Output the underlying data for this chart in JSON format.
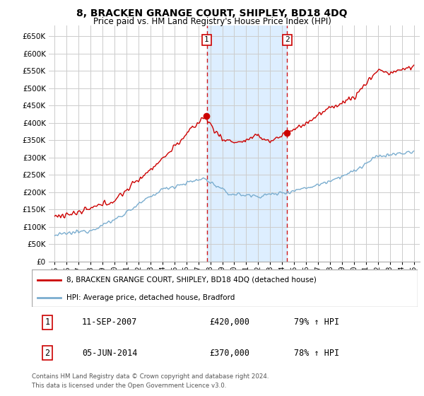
{
  "title": "8, BRACKEN GRANGE COURT, SHIPLEY, BD18 4DQ",
  "subtitle": "Price paid vs. HM Land Registry's House Price Index (HPI)",
  "ylim": [
    0,
    680000
  ],
  "yticks": [
    0,
    50000,
    100000,
    150000,
    200000,
    250000,
    300000,
    350000,
    400000,
    450000,
    500000,
    550000,
    600000,
    650000
  ],
  "sale1_date": 2007.7,
  "sale1_price": 420000,
  "sale2_date": 2014.42,
  "sale2_price": 370000,
  "highlight_xmin": 2007.7,
  "highlight_xmax": 2014.42,
  "xlim_min": 1994.5,
  "xlim_max": 2025.5,
  "red_line_color": "#cc0000",
  "blue_line_color": "#7aadcf",
  "highlight_color": "#ddeeff",
  "vline_color": "#cc0000",
  "legend_label1": "8, BRACKEN GRANGE COURT, SHIPLEY, BD18 4DQ (detached house)",
  "legend_label2": "HPI: Average price, detached house, Bradford",
  "table_row1": [
    "1",
    "11-SEP-2007",
    "£420,000",
    "79% ↑ HPI"
  ],
  "table_row2": [
    "2",
    "05-JUN-2014",
    "£370,000",
    "78% ↑ HPI"
  ],
  "footer": "Contains HM Land Registry data © Crown copyright and database right 2024.\nThis data is licensed under the Open Government Licence v3.0.",
  "grid_color": "#cccccc",
  "xtick_years": [
    1995,
    1996,
    1997,
    1998,
    1999,
    2000,
    2001,
    2002,
    2003,
    2004,
    2005,
    2006,
    2007,
    2008,
    2009,
    2010,
    2011,
    2012,
    2013,
    2014,
    2015,
    2016,
    2017,
    2018,
    2019,
    2020,
    2021,
    2022,
    2023,
    2024,
    2025
  ]
}
